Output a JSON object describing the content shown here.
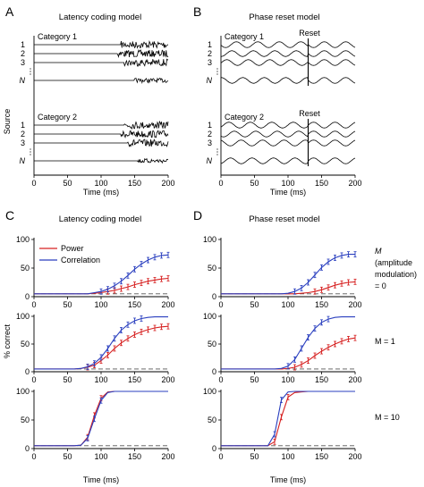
{
  "panels": {
    "A": {
      "letter": "A",
      "title": "Latency coding model"
    },
    "B": {
      "letter": "B",
      "title": "Phase reset model"
    },
    "C": {
      "letter": "C",
      "title": "Latency coding model"
    },
    "D": {
      "letter": "D",
      "title": "Phase reset model"
    }
  },
  "top": {
    "categories": [
      "Category 1",
      "Category 2"
    ],
    "sources": [
      "1",
      "2",
      "3",
      "N"
    ],
    "y_label": "Source",
    "x_label": "Time (ms)",
    "x_ticks": [
      "0",
      "50",
      "100",
      "150",
      "200"
    ],
    "reset_label": "Reset",
    "reset_time_ms": 130,
    "latency_onset_ms": [
      130,
      125,
      135,
      150
    ]
  },
  "bottom": {
    "y_label": "% correct",
    "x_label": "Time (ms)",
    "x_ticks": [
      "0",
      "50",
      "100",
      "150",
      "200"
    ],
    "y_ticks": [
      "0",
      "50",
      "100"
    ],
    "legend": [
      "Power",
      "Correlation"
    ],
    "m_labels": [
      {
        "line1": "M",
        "line2": "(amplitude",
        "line3": "modulation)",
        "line4": "= 0"
      },
      {
        "line1": "M = 1"
      },
      {
        "line1": "M = 10"
      }
    ]
  },
  "colors": {
    "power": "#d62020",
    "correlation": "#2a3fbf",
    "chance": "#555555",
    "trace": "#000000"
  },
  "chart_data": [
    {
      "panel": "C",
      "row": "M = 0",
      "type": "line",
      "x": [
        0,
        10,
        20,
        30,
        40,
        50,
        60,
        70,
        80,
        90,
        100,
        110,
        120,
        130,
        140,
        150,
        160,
        170,
        180,
        190,
        200
      ],
      "series": [
        {
          "name": "Power",
          "values": [
            5,
            5,
            5,
            5,
            5,
            5,
            5,
            5,
            5,
            6,
            7,
            9,
            11,
            14,
            17,
            21,
            24,
            27,
            29,
            31,
            32
          ]
        },
        {
          "name": "Correlation",
          "values": [
            5,
            5,
            5,
            5,
            5,
            5,
            5,
            5,
            5,
            7,
            9,
            13,
            19,
            27,
            37,
            48,
            57,
            64,
            69,
            72,
            73
          ]
        }
      ],
      "chance": 5,
      "ylim": [
        0,
        100
      ],
      "xlim": [
        0,
        200
      ]
    },
    {
      "panel": "C",
      "row": "M = 1",
      "type": "line",
      "x": [
        0,
        10,
        20,
        30,
        40,
        50,
        60,
        70,
        80,
        90,
        100,
        110,
        120,
        130,
        140,
        150,
        160,
        170,
        180,
        190,
        200
      ],
      "series": [
        {
          "name": "Power",
          "values": [
            5,
            5,
            5,
            5,
            5,
            5,
            5,
            6,
            8,
            12,
            20,
            30,
            42,
            52,
            60,
            67,
            72,
            76,
            79,
            81,
            82
          ]
        },
        {
          "name": "Correlation",
          "values": [
            5,
            5,
            5,
            5,
            5,
            5,
            5,
            6,
            9,
            15,
            26,
            42,
            60,
            75,
            85,
            92,
            96,
            98,
            99,
            99,
            99
          ]
        }
      ],
      "chance": 5,
      "ylim": [
        0,
        100
      ],
      "xlim": [
        0,
        200
      ]
    },
    {
      "panel": "C",
      "row": "M = 10",
      "type": "line",
      "x": [
        0,
        10,
        20,
        30,
        40,
        50,
        60,
        70,
        80,
        90,
        100,
        110,
        120,
        130,
        140,
        150,
        160,
        170,
        180,
        190,
        200
      ],
      "series": [
        {
          "name": "Power",
          "values": [
            5,
            5,
            5,
            5,
            5,
            5,
            5,
            6,
            20,
            58,
            88,
            99,
            100,
            100,
            100,
            100,
            100,
            100,
            100,
            100,
            100
          ]
        },
        {
          "name": "Correlation",
          "values": [
            5,
            5,
            5,
            5,
            5,
            5,
            5,
            6,
            18,
            52,
            84,
            98,
            100,
            100,
            100,
            100,
            100,
            100,
            100,
            100,
            100
          ]
        }
      ],
      "chance": 5,
      "ylim": [
        0,
        100
      ],
      "xlim": [
        0,
        200
      ]
    },
    {
      "panel": "D",
      "row": "M = 0",
      "type": "line",
      "x": [
        0,
        10,
        20,
        30,
        40,
        50,
        60,
        70,
        80,
        90,
        100,
        110,
        120,
        130,
        140,
        150,
        160,
        170,
        180,
        190,
        200
      ],
      "series": [
        {
          "name": "Power",
          "values": [
            5,
            5,
            5,
            5,
            5,
            5,
            5,
            5,
            5,
            5,
            5,
            5,
            6,
            7,
            9,
            12,
            16,
            20,
            23,
            25,
            26
          ]
        },
        {
          "name": "Correlation",
          "values": [
            5,
            5,
            5,
            5,
            5,
            5,
            5,
            5,
            5,
            5,
            6,
            9,
            15,
            25,
            38,
            51,
            61,
            68,
            72,
            74,
            74
          ]
        }
      ],
      "chance": 5,
      "ylim": [
        0,
        100
      ],
      "xlim": [
        0,
        200
      ]
    },
    {
      "panel": "D",
      "row": "M = 1",
      "type": "line",
      "x": [
        0,
        10,
        20,
        30,
        40,
        50,
        60,
        70,
        80,
        90,
        100,
        110,
        120,
        130,
        140,
        150,
        160,
        170,
        180,
        190,
        200
      ],
      "series": [
        {
          "name": "Power",
          "values": [
            5,
            5,
            5,
            5,
            5,
            5,
            5,
            5,
            5,
            5,
            6,
            8,
            13,
            20,
            29,
            37,
            44,
            50,
            55,
            59,
            61
          ]
        },
        {
          "name": "Correlation",
          "values": [
            5,
            5,
            5,
            5,
            5,
            5,
            5,
            5,
            5,
            6,
            10,
            22,
            42,
            62,
            78,
            89,
            95,
            98,
            99,
            99,
            99
          ]
        }
      ],
      "chance": 5,
      "ylim": [
        0,
        100
      ],
      "xlim": [
        0,
        200
      ]
    },
    {
      "panel": "D",
      "row": "M = 10",
      "type": "line",
      "x": [
        0,
        10,
        20,
        30,
        40,
        50,
        60,
        70,
        80,
        90,
        100,
        110,
        120,
        130,
        140,
        150,
        160,
        170,
        180,
        190,
        200
      ],
      "series": [
        {
          "name": "Power",
          "values": [
            5,
            5,
            5,
            5,
            5,
            5,
            5,
            5,
            12,
            55,
            90,
            98,
            99,
            100,
            100,
            100,
            100,
            100,
            100,
            100,
            100
          ]
        },
        {
          "name": "Correlation",
          "values": [
            5,
            5,
            5,
            5,
            5,
            5,
            5,
            5,
            25,
            85,
            99,
            100,
            100,
            100,
            100,
            100,
            100,
            100,
            100,
            100,
            100
          ]
        }
      ],
      "chance": 5,
      "ylim": [
        0,
        100
      ],
      "xlim": [
        0,
        200
      ]
    }
  ]
}
